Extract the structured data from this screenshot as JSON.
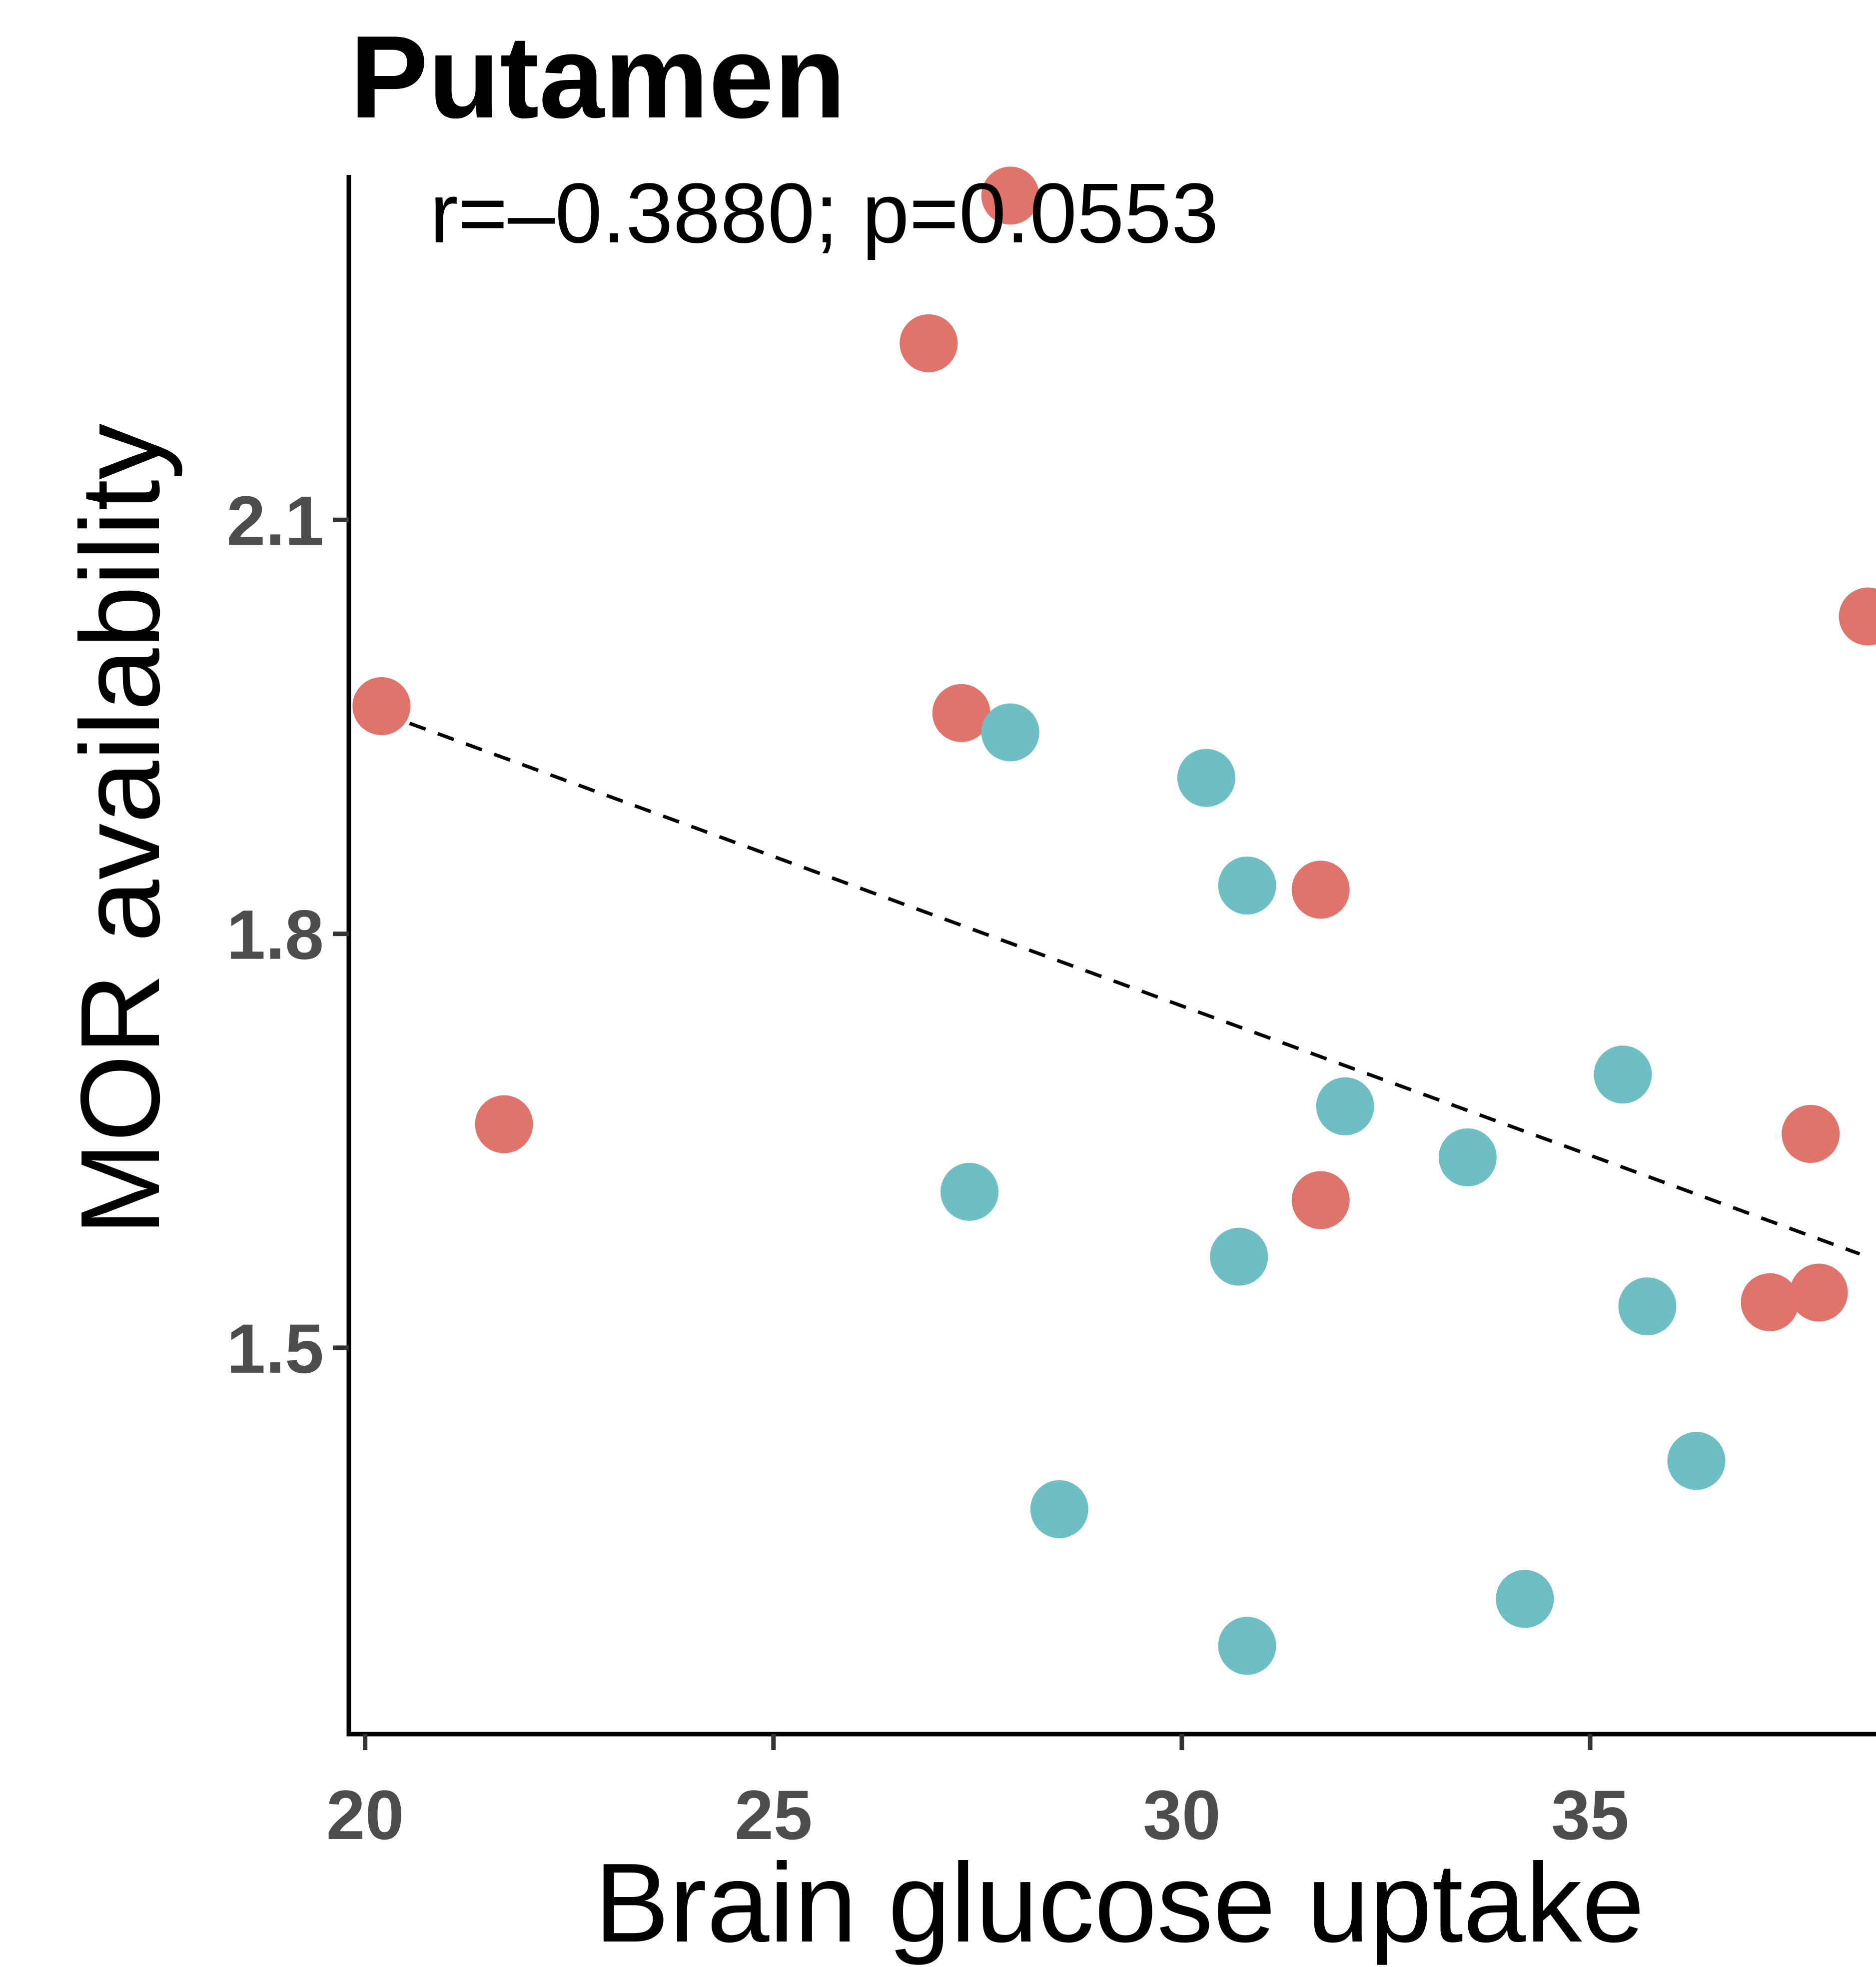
{
  "chart_data": {
    "type": "scatter",
    "title": "Putamen",
    "annotation": "r=–0.3880; p=0.0553",
    "xlabel": "Brain glucose uptake",
    "ylabel": "MOR availability",
    "xlim": [
      19.8,
      38.5
    ],
    "ylim": [
      1.22,
      2.35
    ],
    "x_ticks": [
      20,
      25,
      30,
      35
    ],
    "x_tick_labels": [
      "20",
      "25",
      "30",
      "35"
    ],
    "y_ticks": [
      1.5,
      1.8,
      2.1
    ],
    "y_tick_labels": [
      "1.5",
      "1.8",
      "2.1"
    ],
    "grid": false,
    "legend": "none",
    "trend_line": {
      "style": "dashed",
      "color": "#000000",
      "x": [
        20.2,
        38.3
      ],
      "y": [
        1.96,
        1.568
      ]
    },
    "series": [
      {
        "color": "#e0736a",
        "points": [
          {
            "x": 27.9,
            "y": 2.335
          },
          {
            "x": 26.9,
            "y": 2.228
          },
          {
            "x": 20.2,
            "y": 1.965
          },
          {
            "x": 27.3,
            "y": 1.96
          },
          {
            "x": 31.7,
            "y": 1.832
          },
          {
            "x": 21.7,
            "y": 1.662
          },
          {
            "x": 31.7,
            "y": 1.607
          },
          {
            "x": 38.4,
            "y": 2.03
          },
          {
            "x": 37.7,
            "y": 1.655
          },
          {
            "x": 37.8,
            "y": 1.54
          },
          {
            "x": 37.2,
            "y": 1.533
          }
        ]
      },
      {
        "color": "#6dbfc3",
        "points": [
          {
            "x": 27.9,
            "y": 1.946
          },
          {
            "x": 30.3,
            "y": 1.913
          },
          {
            "x": 30.8,
            "y": 1.835
          },
          {
            "x": 32.0,
            "y": 1.675
          },
          {
            "x": 33.5,
            "y": 1.638
          },
          {
            "x": 35.4,
            "y": 1.698
          },
          {
            "x": 27.4,
            "y": 1.613
          },
          {
            "x": 30.7,
            "y": 1.566
          },
          {
            "x": 35.7,
            "y": 1.53
          },
          {
            "x": 36.3,
            "y": 1.418
          },
          {
            "x": 28.5,
            "y": 1.383
          },
          {
            "x": 34.2,
            "y": 1.318
          },
          {
            "x": 30.8,
            "y": 1.284
          }
        ]
      }
    ]
  }
}
